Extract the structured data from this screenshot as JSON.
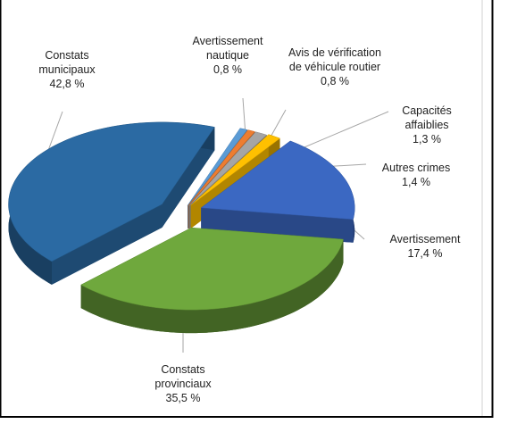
{
  "chart_data": {
    "type": "pie3d",
    "categories": [
      "Avertissement nautique",
      "Avis de vérification de véhicule routier",
      "Capacités affaiblies",
      "Autres crimes",
      "Avertissement",
      "Constats provinciaux",
      "Constats municipaux"
    ],
    "values": [
      0.8,
      0.8,
      1.3,
      1.4,
      17.4,
      35.5,
      42.8
    ],
    "value_labels": [
      "0,8 %",
      "0,8 %",
      "1,3 %",
      "1,4 %",
      "17,4 %",
      "35,5 %",
      "42,8 %"
    ],
    "colors": [
      "#5b9bd5",
      "#ed7d31",
      "#a5a5a5",
      "#ffc000",
      "#3b68c2",
      "#6fa83d",
      "#2b6aa3"
    ]
  }
}
